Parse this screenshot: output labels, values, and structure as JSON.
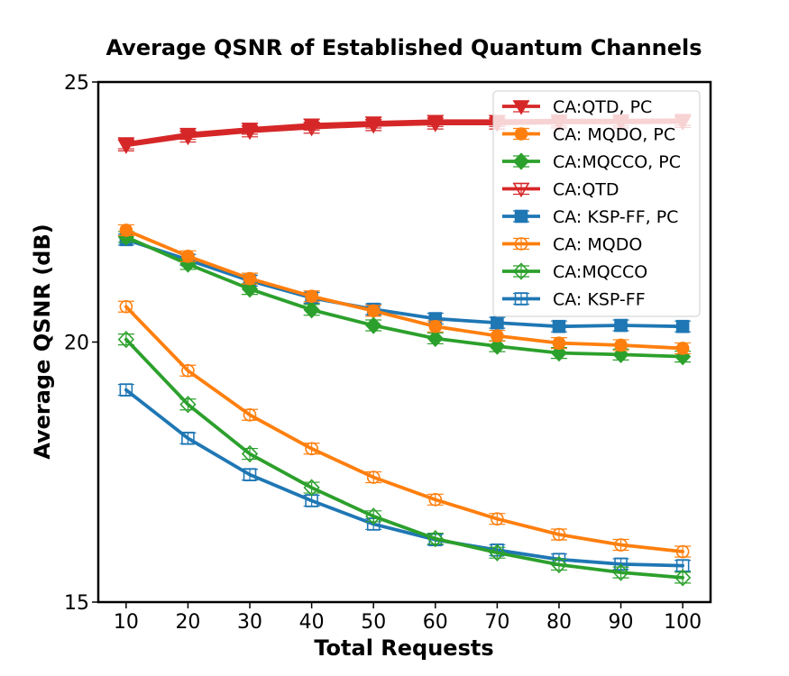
{
  "chart_data": {
    "type": "line",
    "title": "Average QSNR of Established Quantum Channels",
    "xlabel": "Total Requests",
    "ylabel": "Average QSNR (dB)",
    "x": [
      10,
      20,
      30,
      40,
      50,
      60,
      70,
      80,
      90,
      100
    ],
    "xlim": [
      5.5,
      104.5
    ],
    "ylim": [
      15,
      25
    ],
    "xticks": [
      "10",
      "20",
      "30",
      "40",
      "50",
      "60",
      "70",
      "80",
      "90",
      "100"
    ],
    "yticks": [
      "15",
      "20",
      "25"
    ],
    "grid": false,
    "legend_position": "top-right",
    "series": [
      {
        "name": "CA:QTD, PC",
        "color": "#d62728",
        "marker": "triangle-down",
        "filled": true,
        "values": [
          23.82,
          24.0,
          24.1,
          24.18,
          24.22,
          24.25,
          24.25,
          24.26,
          24.26,
          24.27
        ]
      },
      {
        "name": "CA: MQDO, PC",
        "color": "#ff7f0e",
        "marker": "circle",
        "filled": true,
        "values": [
          22.15,
          21.65,
          21.22,
          20.88,
          20.6,
          20.3,
          20.12,
          19.98,
          19.94,
          19.88
        ]
      },
      {
        "name": "CA:MQCCO, PC",
        "color": "#2ca02c",
        "marker": "diamond",
        "filled": true,
        "values": [
          22.02,
          21.5,
          21.02,
          20.62,
          20.32,
          20.07,
          19.92,
          19.79,
          19.76,
          19.72
        ]
      },
      {
        "name": "CA:QTD",
        "color": "#d62728",
        "marker": "triangle-down",
        "filled": false,
        "values": [
          23.78,
          23.95,
          24.05,
          24.12,
          24.17,
          24.2,
          24.2,
          24.22,
          24.22,
          24.23
        ]
      },
      {
        "name": "CA: KSP-FF, PC",
        "color": "#1f77b4",
        "marker": "square",
        "filled": true,
        "values": [
          21.97,
          21.58,
          21.18,
          20.85,
          20.63,
          20.45,
          20.37,
          20.3,
          20.32,
          20.3
        ]
      },
      {
        "name": "CA: MQDO",
        "color": "#ff7f0e",
        "marker": "circle",
        "filled": false,
        "values": [
          20.68,
          19.45,
          18.6,
          17.95,
          17.4,
          16.97,
          16.6,
          16.3,
          16.1,
          15.97
        ]
      },
      {
        "name": "CA:MQCCO",
        "color": "#2ca02c",
        "marker": "diamond",
        "filled": false,
        "values": [
          20.05,
          18.8,
          17.85,
          17.2,
          16.65,
          16.22,
          15.95,
          15.72,
          15.57,
          15.47
        ]
      },
      {
        "name": "CA: KSP-FF",
        "color": "#1f77b4",
        "marker": "square",
        "filled": false,
        "values": [
          19.08,
          18.15,
          17.45,
          16.95,
          16.5,
          16.2,
          16.0,
          15.82,
          15.73,
          15.7
        ]
      }
    ]
  }
}
